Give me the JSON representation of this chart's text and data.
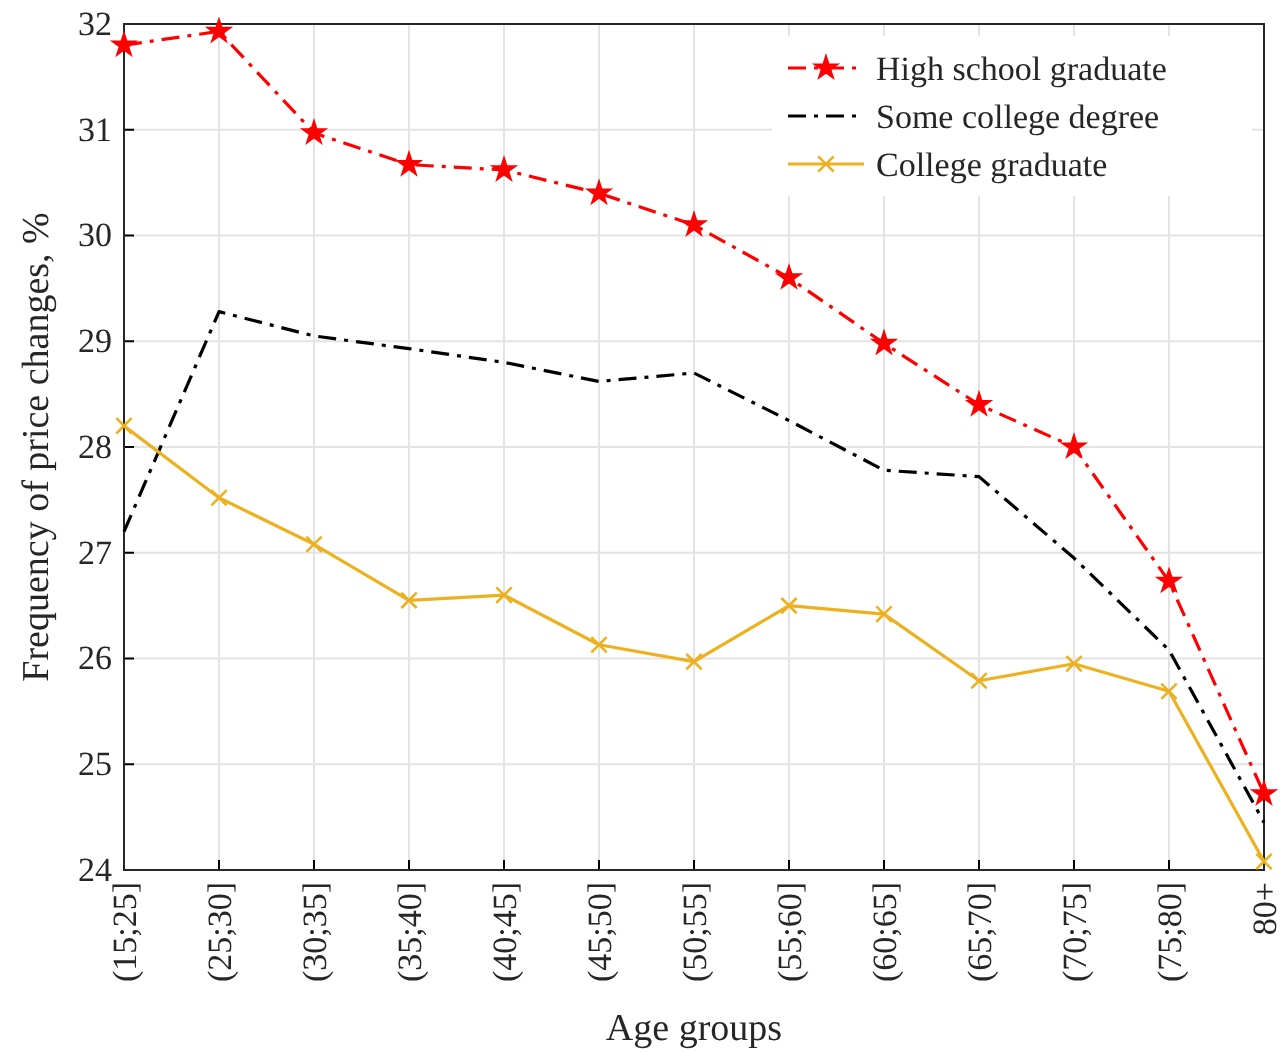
{
  "chart_data": {
    "type": "line",
    "xlabel": "Age groups",
    "ylabel": "Frequency of price changes, %",
    "categories": [
      "(15;25]",
      "(25;30]",
      "(30;35]",
      "(35;40]",
      "(40;45]",
      "(45;50]",
      "(50;55]",
      "(55;60]",
      "(60;65]",
      "(65;70]",
      "(70;75]",
      "(75;80]",
      "80+"
    ],
    "ylim": [
      24,
      32
    ],
    "yticks": [
      24,
      25,
      26,
      27,
      28,
      29,
      30,
      31,
      32
    ],
    "grid": true,
    "legend": "top right",
    "series": [
      {
        "name": "High school graduate",
        "color": "#ff0000",
        "marker": "star",
        "line_style": "dashdot",
        "values": [
          31.8,
          31.93,
          30.97,
          30.67,
          30.62,
          30.4,
          30.1,
          29.6,
          28.98,
          28.4,
          28.0,
          26.73,
          24.72
        ]
      },
      {
        "name": "Some college degree",
        "color": "#000000",
        "marker": "none",
        "line_style": "dashdot",
        "values": [
          27.2,
          29.28,
          29.05,
          28.93,
          28.8,
          28.62,
          28.7,
          28.25,
          27.78,
          27.72,
          26.95,
          26.08,
          24.45
        ]
      },
      {
        "name": "College graduate",
        "color": "#edb120",
        "marker": "cross",
        "line_style": "solid",
        "values": [
          28.2,
          27.52,
          27.08,
          26.55,
          26.6,
          26.13,
          25.97,
          26.5,
          26.42,
          25.79,
          25.95,
          25.69,
          24.08
        ]
      }
    ]
  }
}
